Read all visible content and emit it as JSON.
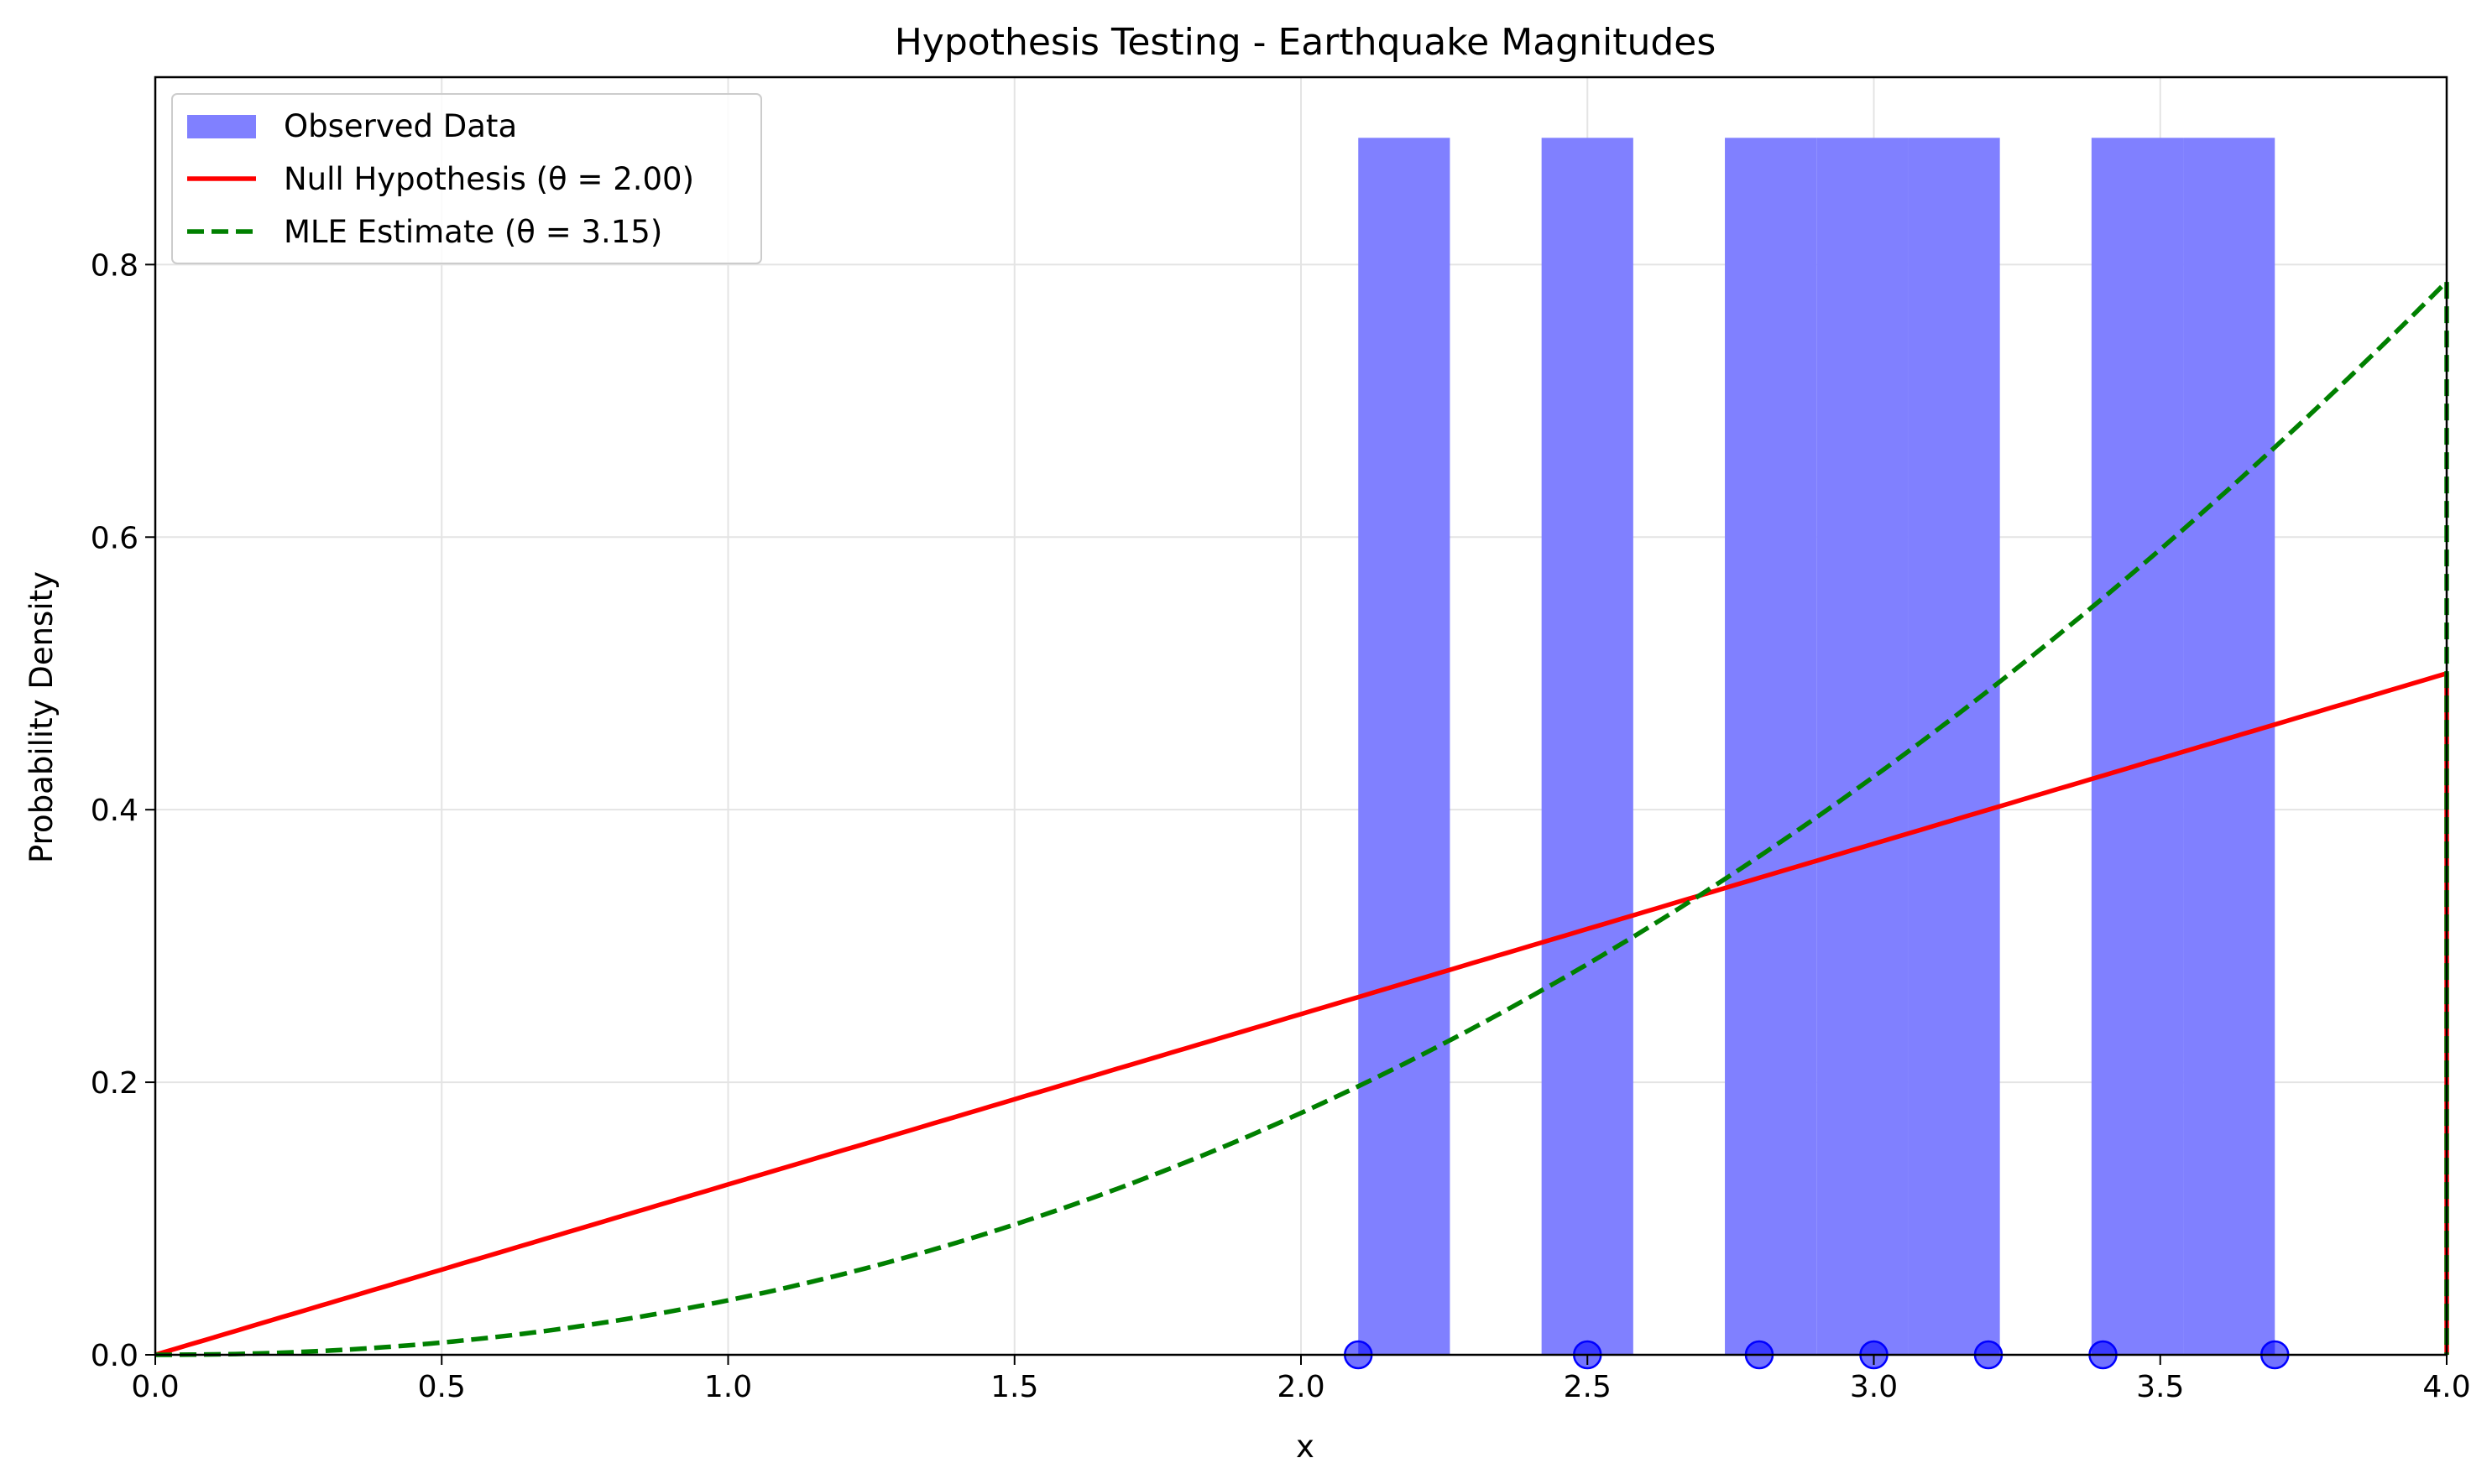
{
  "chart_data": {
    "type": "bar",
    "title": "Hypothesis Testing - Earthquake Magnitudes",
    "xlabel": "x",
    "ylabel": "Probability Density",
    "xlim": [
      0,
      4
    ],
    "ylim": [
      0,
      0.9375
    ],
    "x_ticks": [
      "0.0",
      "0.5",
      "1.0",
      "1.5",
      "2.0",
      "2.5",
      "3.0",
      "3.5",
      "4.0"
    ],
    "y_ticks": [
      "0.0",
      "0.2",
      "0.4",
      "0.6",
      "0.8"
    ],
    "grid": true,
    "legend_position": "top-left",
    "observations": [
      2.1,
      2.5,
      2.8,
      3.0,
      3.2,
      3.4,
      3.7
    ],
    "histogram": {
      "name": "Observed Data",
      "color": "#8080ff",
      "bins": [
        {
          "x0": 2.1,
          "x1": 2.26,
          "value": 0.893
        },
        {
          "x0": 2.26,
          "x1": 2.42,
          "value": 0
        },
        {
          "x0": 2.42,
          "x1": 2.58,
          "value": 0.893
        },
        {
          "x0": 2.58,
          "x1": 2.74,
          "value": 0
        },
        {
          "x0": 2.74,
          "x1": 2.9,
          "value": 0.893
        },
        {
          "x0": 2.9,
          "x1": 3.06,
          "value": 0.893
        },
        {
          "x0": 3.06,
          "x1": 3.22,
          "value": 0.893
        },
        {
          "x0": 3.22,
          "x1": 3.38,
          "value": 0
        },
        {
          "x0": 3.38,
          "x1": 3.54,
          "value": 0.893
        },
        {
          "x0": 3.54,
          "x1": 3.7,
          "value": 0.893
        }
      ]
    },
    "series": [
      {
        "name": "Null Hypothesis (θ = 2.00)",
        "color": "#ff0000",
        "style": "solid",
        "theta": 2.0,
        "x": [
          0,
          0.5,
          1.0,
          1.5,
          2.0,
          2.5,
          3.0,
          3.5,
          4.0
        ],
        "y": [
          0,
          0.0625,
          0.125,
          0.1875,
          0.25,
          0.3125,
          0.375,
          0.4375,
          0.5
        ]
      },
      {
        "name": "MLE Estimate (θ = 3.15)",
        "color": "#008000",
        "style": "dashed",
        "theta": 3.15,
        "x": [
          0,
          0.5,
          1.0,
          1.5,
          2.0,
          2.5,
          3.0,
          3.5,
          4.0
        ],
        "y": [
          0,
          0.0088,
          0.0393,
          0.0942,
          0.177,
          0.289,
          0.428,
          0.599,
          0.788
        ]
      }
    ]
  }
}
